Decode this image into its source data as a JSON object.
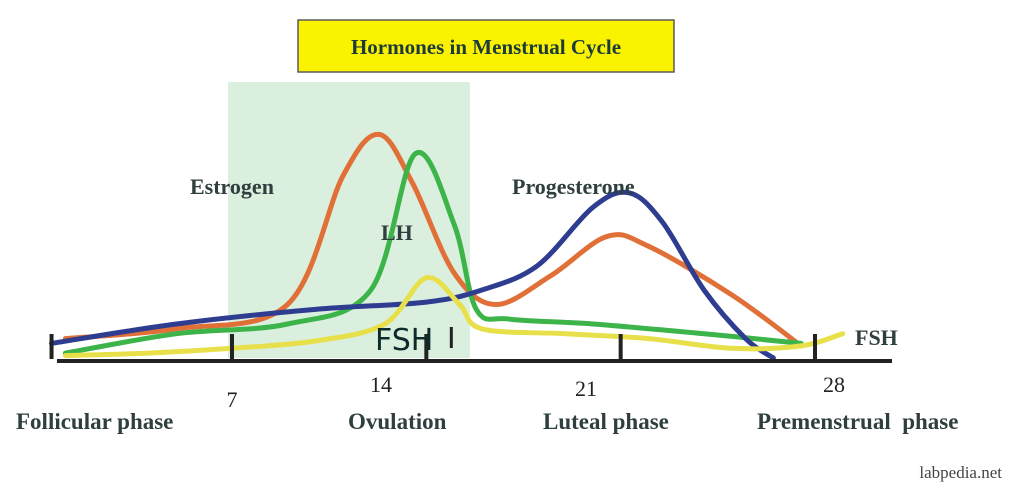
{
  "chart_data": {
    "type": "line",
    "title": "Hormones in Menstrual Cycle",
    "x_ticks": [
      "7",
      "14",
      "21",
      "28"
    ],
    "phases": [
      "Follicular phase",
      "Ovulation",
      "Luteal phase",
      "Premenstrual  phase"
    ],
    "series": [
      {
        "name": "Estrogen",
        "color": "#e07038",
        "points": [
          [
            1,
            0.08
          ],
          [
            5,
            0.12
          ],
          [
            9,
            0.22
          ],
          [
            11,
            0.75
          ],
          [
            12.3,
            0.92
          ],
          [
            13.5,
            0.72
          ],
          [
            15,
            0.35
          ],
          [
            16.5,
            0.22
          ],
          [
            18.5,
            0.34
          ],
          [
            20.5,
            0.5
          ],
          [
            22,
            0.46
          ],
          [
            25,
            0.26
          ],
          [
            27.5,
            0.05
          ]
        ]
      },
      {
        "name": "LH",
        "color": "#3cb44a",
        "points": [
          [
            1,
            0.02
          ],
          [
            5,
            0.1
          ],
          [
            9,
            0.14
          ],
          [
            12,
            0.28
          ],
          [
            13.6,
            0.84
          ],
          [
            15,
            0.55
          ],
          [
            15.8,
            0.2
          ],
          [
            17,
            0.16
          ],
          [
            20,
            0.14
          ],
          [
            24,
            0.1
          ],
          [
            27.5,
            0.06
          ]
        ]
      },
      {
        "name": "Progesterone",
        "color": "#2e3d8f",
        "points": [
          [
            0.5,
            0.06
          ],
          [
            5,
            0.14
          ],
          [
            10,
            0.2
          ],
          [
            14,
            0.23
          ],
          [
            16,
            0.28
          ],
          [
            18,
            0.38
          ],
          [
            20,
            0.62
          ],
          [
            21.3,
            0.68
          ],
          [
            22.5,
            0.56
          ],
          [
            24,
            0.28
          ],
          [
            25.5,
            0.08
          ],
          [
            26.5,
            0
          ]
        ]
      },
      {
        "name": "FSH",
        "color": "#e7e04a",
        "points": [
          [
            1,
            0.01
          ],
          [
            4,
            0.02
          ],
          [
            7,
            0.04
          ],
          [
            10,
            0.07
          ],
          [
            12.5,
            0.14
          ],
          [
            14,
            0.33
          ],
          [
            15.2,
            0.22
          ],
          [
            16,
            0.12
          ],
          [
            19,
            0.1
          ],
          [
            22,
            0.08
          ],
          [
            25,
            0.04
          ],
          [
            27.5,
            0.05
          ],
          [
            29,
            0.1
          ]
        ]
      }
    ],
    "series_labels": {
      "estrogen": "Estrogen",
      "lh": "LH",
      "progesterone": "Progesterone",
      "fsh_inner": "FSH",
      "fsh_right": "FSH"
    },
    "highlight_range": [
      7,
      15.5
    ]
  },
  "watermark": "labpedia.net"
}
